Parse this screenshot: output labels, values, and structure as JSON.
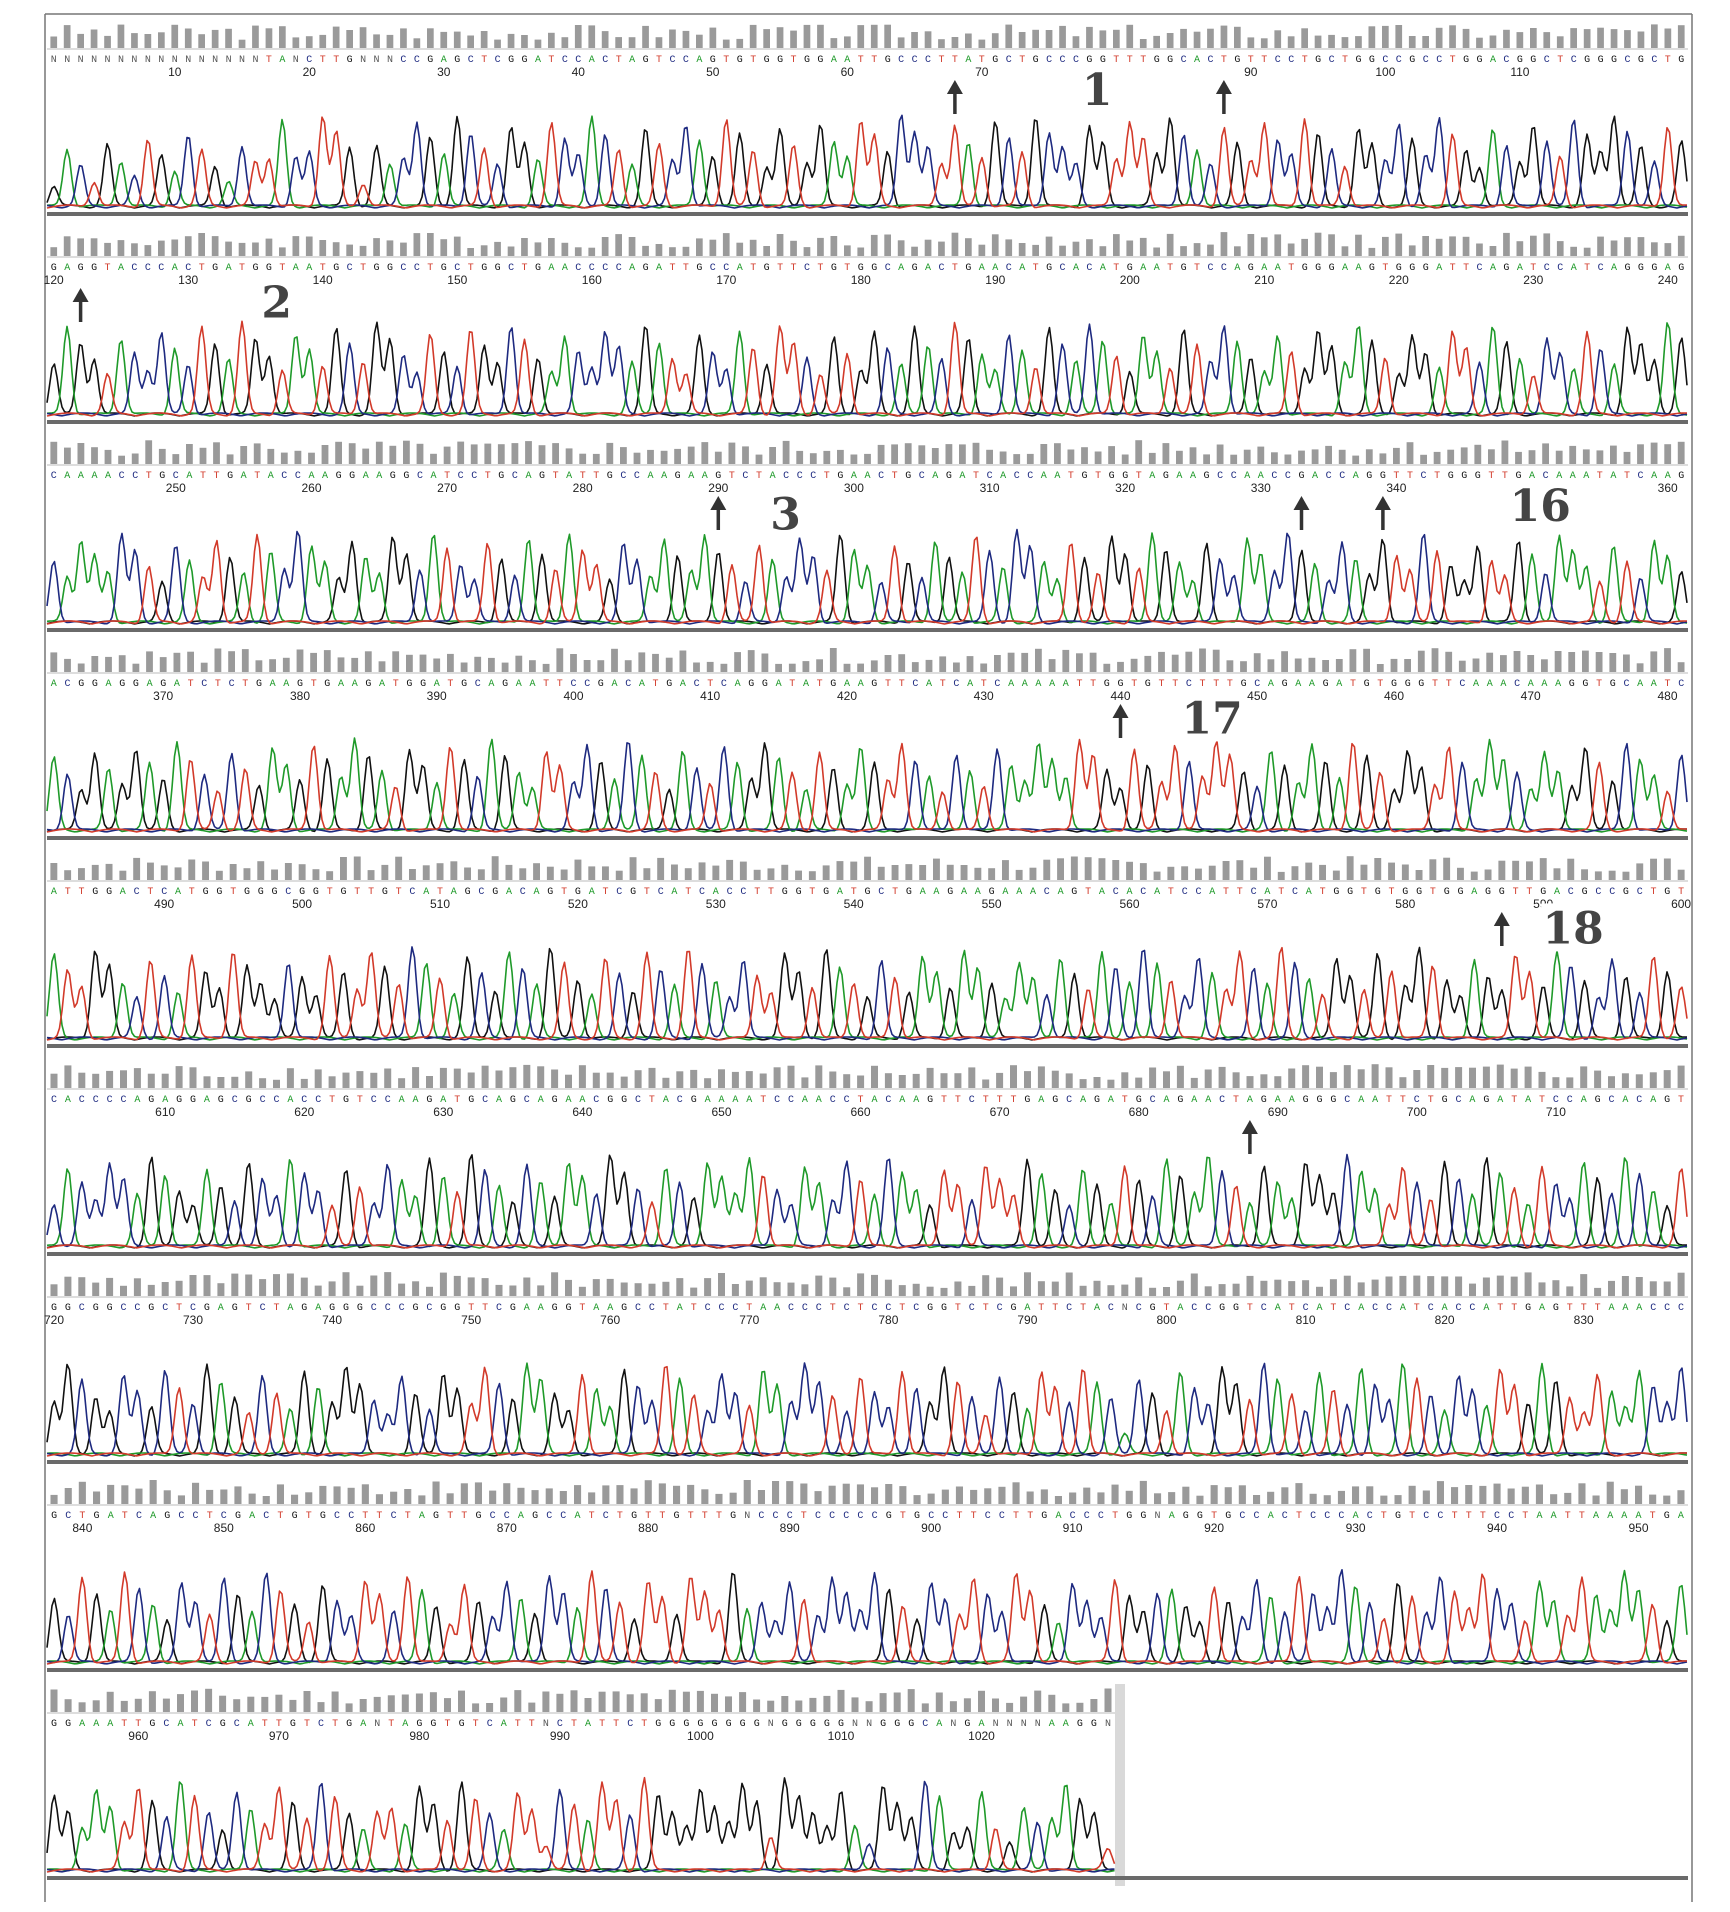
{
  "colors": {
    "A": "#1f9a2a",
    "C": "#1e2a80",
    "G": "#111111",
    "T": "#d23a2a",
    "N": "#555555",
    "quality_bar": "#9a9a9a",
    "row_rule": "#6a6a6a",
    "frame": "#777777",
    "grey_block": "#d9d9d9",
    "arrow": "#333333"
  },
  "chart_data": {
    "type": "line",
    "description_of_axes": "sequencing chromatogram: x = base position, y = fluorescence intensity (no printed y scale)",
    "rows": [
      {
        "sequence": "NNNNNNNNNNNNNNNNTANCTTGNNNCCGAGCTCGGATCCACTAGTCCAGTGTGGTGGAATTGCCCTTATGCTGCCCGGTTTGGCACTGTTCCTGCTGGCCGCCTGGACGGCTCGGGCGCTG",
        "start_pos": 1,
        "ticks": [
          10,
          20,
          30,
          40,
          50,
          60,
          70,
          80,
          90,
          100,
          110
        ],
        "labels": [
          "1"
        ],
        "arrows": [
          68,
          88
        ]
      },
      {
        "sequence": "GAGGTACCCACTGATGGTAATGCTGGCCTGCTGGCTGAACCCCAGATTGCCATGTTCTGTGGCAGACTGAACATGCACATGAATGTCCAGAATGGGAAGTGGGATTCAGATCCATCAGGGAG",
        "start_pos": 120,
        "ticks": [
          120,
          130,
          140,
          150,
          160,
          170,
          180,
          190,
          200,
          210,
          220,
          230,
          240
        ],
        "labels": [
          "2"
        ],
        "arrows": [
          122
        ]
      },
      {
        "sequence": "CAAAACCTGCATTGATACCAAGGAAGGCATCCTGCAGTATTGCCAAGAAGTCTACCCTGAACTGCAGATCACCAATGTGGTAGAAGCCAACCGACCAGGTTCTGGGTTGACAAATATCAAG",
        "start_pos": 241,
        "ticks": [
          250,
          260,
          270,
          280,
          290,
          300,
          310,
          320,
          330,
          340,
          350,
          360
        ],
        "labels": [
          "3",
          "16"
        ],
        "arrows": [
          290,
          333,
          339
        ]
      },
      {
        "sequence": "ACGGAGGAGATCTCTGAAGTGAAGATGGATGCAGAATTCCGACATGACTCAGGATATGAAGTTCATCATCAAAAATTGGTGTTCTTTGCAGAAGATGTGGGTTCAAACAAAGGTGCAATC",
        "start_pos": 362,
        "ticks": [
          370,
          380,
          390,
          400,
          410,
          420,
          430,
          440,
          450,
          460,
          470,
          480
        ],
        "labels": [
          "17"
        ],
        "arrows": [
          440
        ]
      },
      {
        "sequence": "ATTGGACTCATGGTGGGCGGTGTTGTCATAGCGACAGTGATCGTCATCACCTTGGTGATGCTGAAGAAGAAACAGTACACATCCATTCATCATGGTGTGGTGGAGGTTGACGCCGCTGT",
        "start_pos": 482,
        "ticks": [
          490,
          500,
          510,
          520,
          530,
          540,
          550,
          560,
          570,
          580,
          590,
          600
        ],
        "labels": [
          "18"
        ],
        "arrows": [
          587
        ]
      },
      {
        "sequence": "CACCCCAGAGGAGCGCCACCTGTCCAAGATGCAGCAGAACGGCTACGAAAATCCAACCTACAAGTTCTTTGAGCAGATGCAGAACTAGAAGGGCAATTCTGCAGATATCCAGCACAGT",
        "start_pos": 602,
        "ticks": [
          610,
          620,
          630,
          640,
          650,
          660,
          670,
          680,
          690,
          700,
          710
        ],
        "labels": [],
        "arrows": [
          688
        ]
      },
      {
        "sequence": "GGCGGCCGCTCGAGTCTAGAGGGCCCGCGGTTCGAAGGTAAGCCTATCCCTAACCCTCTCCTCGGTCTCGATTCTACNCGTACCGGTCATCATCACCATCACCATTGAGTTTAAACCC",
        "start_pos": 720,
        "ticks": [
          720,
          730,
          740,
          750,
          760,
          770,
          780,
          790,
          800,
          810,
          820,
          830
        ],
        "labels": [],
        "arrows": []
      },
      {
        "sequence": "GCTGATCAGCCTCGACTGTGCCTTCTAGTTGCCAGCCATCTGTTGTTTGNCCCTCCCCCGTGCCTTCCTTGACCCTGGNAGGTGCCACTCCCACTGTCCTTTCCTAATTAAAATGA",
        "start_pos": 838,
        "ticks": [
          840,
          850,
          860,
          870,
          880,
          890,
          900,
          910,
          920,
          930,
          940,
          950
        ],
        "labels": [],
        "arrows": []
      },
      {
        "sequence": "GGAAATTGCATCGCATTGTCTGANTAGGTGTCATTNCTATTCTGGGGGGGGNGGGGGNNGGGCANGANNNNAAGGN",
        "start_pos": 954,
        "ticks": [
          960,
          970,
          980,
          990,
          1000,
          1010,
          1020
        ],
        "labels": [],
        "arrows": []
      }
    ]
  }
}
